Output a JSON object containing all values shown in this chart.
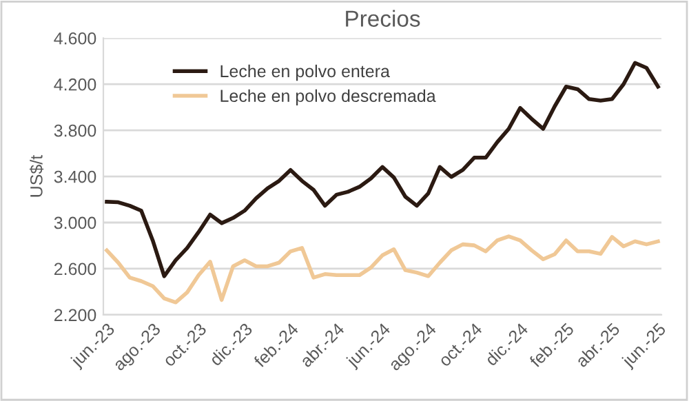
{
  "chart_data": {
    "type": "line",
    "title": "Precios",
    "ylabel": "US$/t",
    "categories": [
      "jun.-23",
      null,
      null,
      null,
      "ago.-23",
      null,
      null,
      null,
      "oct.-23",
      null,
      null,
      null,
      "dic.-23",
      null,
      null,
      null,
      "feb.-24",
      null,
      null,
      null,
      "abr.-24",
      null,
      null,
      null,
      "jun.-24",
      null,
      null,
      null,
      "ago.-24",
      null,
      null,
      null,
      "oct.-24",
      null,
      null,
      null,
      "dic.-24",
      null,
      null,
      null,
      "feb.-25",
      null,
      null,
      null,
      "abr.-25",
      null,
      null,
      null,
      "jun.-25"
    ],
    "series": [
      {
        "name": "Leche en polvo entera",
        "color": "#2b1a12",
        "values": [
          3180,
          3176,
          3146,
          3103,
          2845,
          2535,
          2673,
          2780,
          2918,
          3069,
          2995,
          3040,
          3103,
          3210,
          3297,
          3361,
          3456,
          3361,
          3284,
          3146,
          3241,
          3267,
          3310,
          3383,
          3482,
          3391,
          3224,
          3146,
          3254,
          3482,
          3396,
          3456,
          3563,
          3563,
          3697,
          3813,
          3994,
          3899,
          3813,
          4007,
          4179,
          4157,
          4071,
          4058,
          4071,
          4200,
          4385,
          4342,
          4179
        ]
      },
      {
        "name": "Leche en polvo descremada",
        "color": "#f0c896",
        "values": [
          2759,
          2652,
          2523,
          2492,
          2449,
          2342,
          2308,
          2394,
          2544,
          2660,
          2329,
          2621,
          2673,
          2621,
          2621,
          2652,
          2750,
          2780,
          2523,
          2553,
          2544,
          2544,
          2544,
          2609,
          2716,
          2768,
          2587,
          2566,
          2535,
          2652,
          2759,
          2811,
          2802,
          2750,
          2845,
          2880,
          2845,
          2759,
          2682,
          2725,
          2845,
          2750,
          2750,
          2729,
          2875,
          2794,
          2837,
          2811,
          2837
        ]
      }
    ],
    "ylim": [
      2200,
      4600
    ],
    "yticks": [
      {
        "value": 2200,
        "label": "2.200"
      },
      {
        "value": 2600,
        "label": "2.600"
      },
      {
        "value": 3000,
        "label": "3.000"
      },
      {
        "value": 3400,
        "label": "3.400"
      },
      {
        "value": 3800,
        "label": "3.800"
      },
      {
        "value": 4200,
        "label": "4.200"
      },
      {
        "value": 4600,
        "label": "4.600"
      }
    ],
    "grid": "y",
    "legend": "top left",
    "marker": "none",
    "line_style": "solid"
  }
}
